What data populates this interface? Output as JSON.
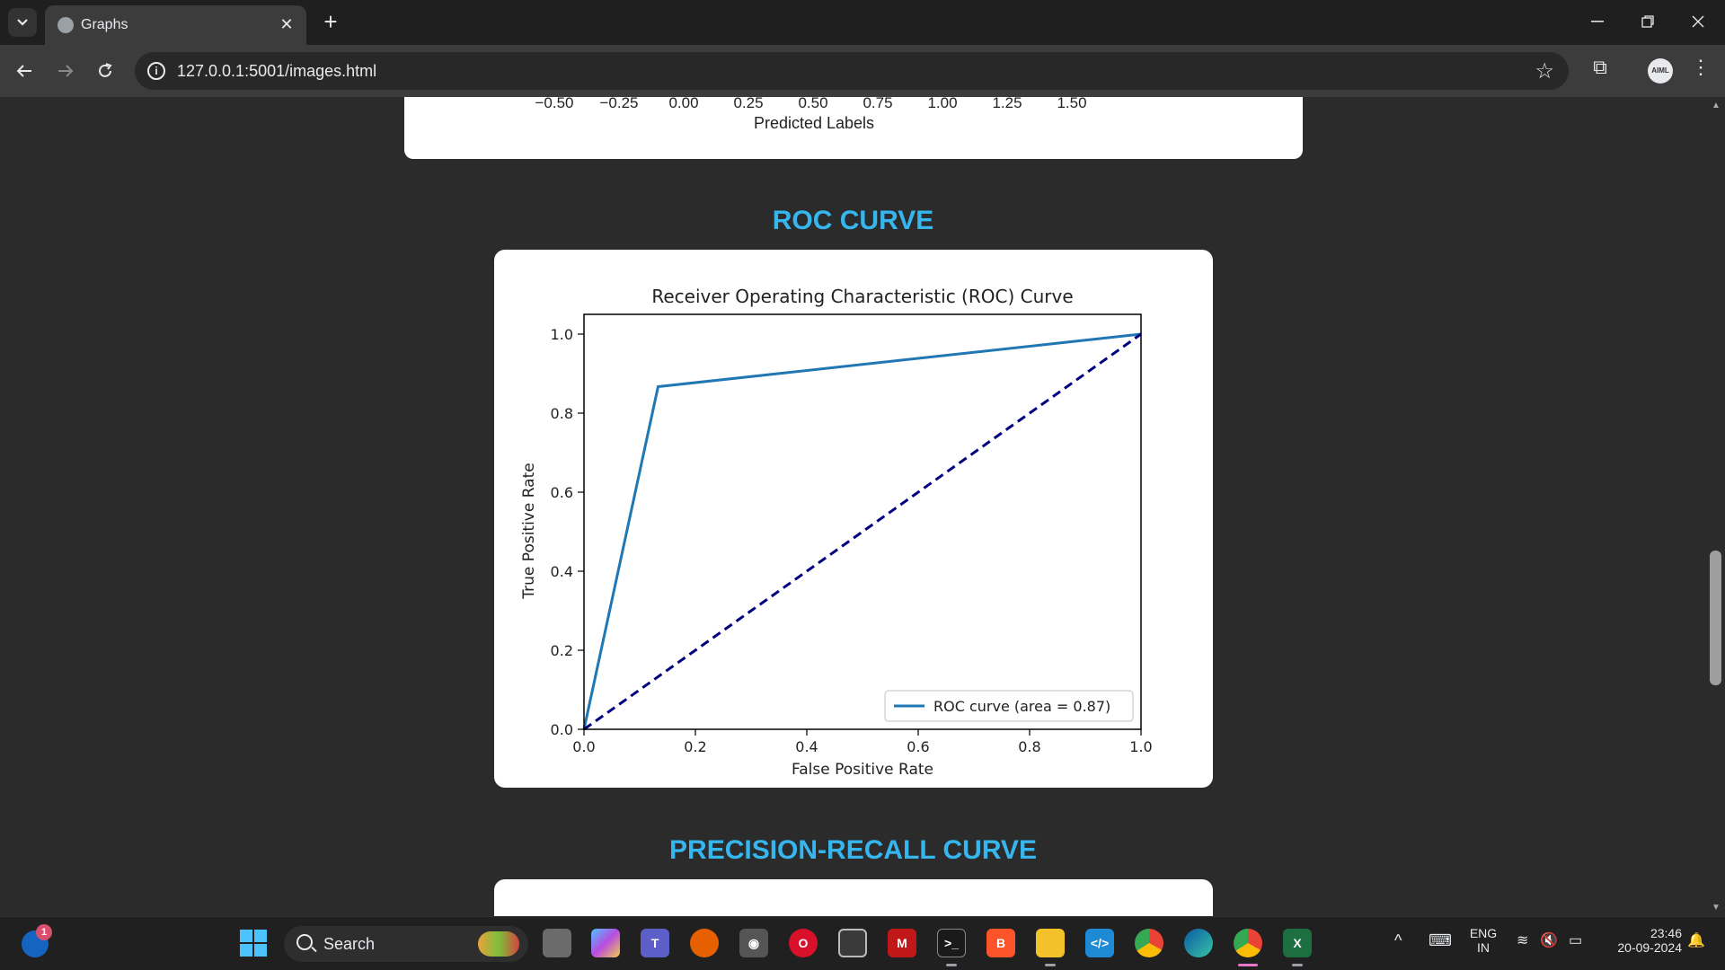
{
  "browser": {
    "tab_title": "Graphs",
    "url": "127.0.0.1:5001/images.html",
    "avatar_text": "AIML"
  },
  "page": {
    "previous_chart": {
      "x_ticks": [
        "−0.50",
        "−0.25",
        "0.00",
        "0.25",
        "0.50",
        "0.75",
        "1.00",
        "1.25",
        "1.50"
      ],
      "xlabel": "Predicted Labels"
    },
    "roc_section_title": "ROC CURVE",
    "pr_section_title": "PRECISION-RECALL CURVE",
    "accent_color": "#36b6ee"
  },
  "chart_data": {
    "type": "line",
    "title": "Receiver Operating Characteristic (ROC) Curve",
    "xlabel": "False Positive Rate",
    "ylabel": "True Positive Rate",
    "xlim": [
      0.0,
      1.0
    ],
    "ylim": [
      0.0,
      1.05
    ],
    "x_ticks": [
      "0.0",
      "0.2",
      "0.4",
      "0.6",
      "0.8",
      "1.0"
    ],
    "y_ticks": [
      "0.0",
      "0.2",
      "0.4",
      "0.6",
      "0.8",
      "1.0"
    ],
    "grid": false,
    "legend_position": "lower-right",
    "series": [
      {
        "name": "ROC curve (area = 0.87)",
        "color": "#1f77b4",
        "style": "solid",
        "x": [
          0.0,
          0.133,
          1.0
        ],
        "y": [
          0.0,
          0.867,
          1.0
        ]
      },
      {
        "color": "#000080",
        "style": "dashed",
        "x": [
          0.0,
          1.0
        ],
        "y": [
          0.0,
          1.0
        ]
      }
    ]
  },
  "taskbar": {
    "search_label": "Search",
    "notification_count": "1",
    "language_line1": "ENG",
    "language_line2": "IN",
    "time": "23:46",
    "date": "20-09-2024"
  }
}
